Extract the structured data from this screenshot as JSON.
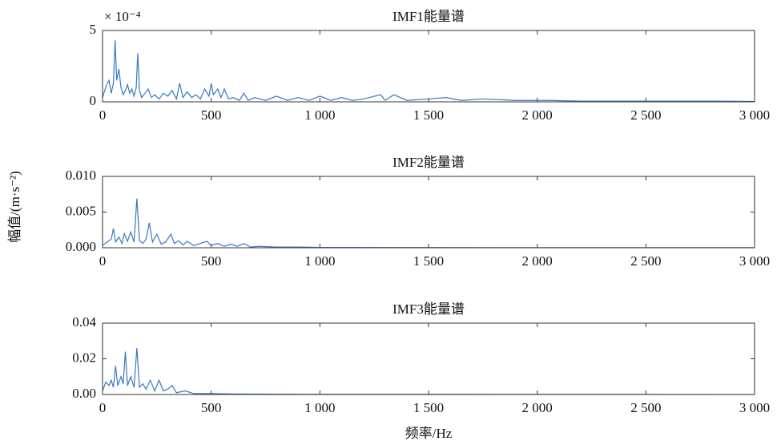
{
  "shared": {
    "y_label": "幅值/(m·s⁻²)",
    "x_label": "频率/Hz"
  },
  "chart_data": [
    {
      "type": "line",
      "title": "IMF1能量谱",
      "y_multiplier": "× 10⁻⁴",
      "color": "#3a78c2",
      "xlim": [
        0,
        3000
      ],
      "xticks": [
        0,
        500,
        {
          "value": 1000,
          "label": "1 000"
        },
        {
          "value": 1500,
          "label": "1 500"
        },
        {
          "value": 2000,
          "label": "2 000"
        },
        {
          "value": 2500,
          "label": "2 500"
        },
        {
          "value": 3000,
          "label": "3 000"
        }
      ],
      "ylim": [
        0,
        5
      ],
      "yticks": [
        0,
        5
      ],
      "x": [
        0,
        10,
        20,
        30,
        40,
        50,
        58,
        65,
        75,
        85,
        95,
        105,
        115,
        125,
        135,
        145,
        155,
        162,
        170,
        180,
        195,
        210,
        225,
        240,
        260,
        280,
        300,
        320,
        340,
        355,
        370,
        390,
        410,
        430,
        450,
        470,
        490,
        500,
        510,
        530,
        545,
        560,
        580,
        600,
        630,
        650,
        670,
        700,
        750,
        800,
        850,
        900,
        950,
        1000,
        1050,
        1100,
        1150,
        1200,
        1280,
        1300,
        1340,
        1400,
        1500,
        1580,
        1650,
        1750,
        1900,
        2050,
        2200,
        2400,
        2600,
        2800,
        3000
      ],
      "values": [
        0.3,
        0.8,
        1.2,
        1.5,
        0.6,
        1.3,
        4.3,
        1.5,
        2.3,
        1.0,
        0.5,
        0.8,
        1.2,
        0.6,
        0.9,
        0.4,
        1.0,
        3.4,
        0.8,
        0.3,
        0.6,
        0.9,
        0.3,
        0.5,
        0.2,
        0.6,
        0.4,
        0.8,
        0.2,
        1.3,
        0.3,
        0.7,
        0.3,
        0.5,
        0.2,
        0.9,
        0.4,
        1.3,
        0.5,
        0.9,
        0.3,
        0.9,
        0.2,
        0.3,
        0.1,
        0.6,
        0.1,
        0.3,
        0.1,
        0.4,
        0.1,
        0.3,
        0.1,
        0.4,
        0.1,
        0.3,
        0.1,
        0.2,
        0.5,
        0.1,
        0.5,
        0.1,
        0.2,
        0.3,
        0.1,
        0.2,
        0.1,
        0.1,
        0.05,
        0.05,
        0.05,
        0.05,
        0.03
      ]
    },
    {
      "type": "line",
      "title": "IMF2能量谱",
      "color": "#3a78c2",
      "xlim": [
        0,
        3000
      ],
      "xticks": [
        0,
        500,
        {
          "value": 1000,
          "label": "1 000"
        },
        {
          "value": 1500,
          "label": "1 500"
        },
        {
          "value": 2000,
          "label": "2 000"
        },
        {
          "value": 2500,
          "label": "2 500"
        },
        {
          "value": 3000,
          "label": "3 000"
        }
      ],
      "ylim": [
        0,
        0.01
      ],
      "yticks": [
        {
          "value": 0,
          "label": "0.000"
        },
        {
          "value": 0.005,
          "label": "0.005"
        },
        {
          "value": 0.01,
          "label": "0.010"
        }
      ],
      "x": [
        0,
        20,
        40,
        50,
        60,
        75,
        90,
        100,
        115,
        130,
        145,
        158,
        170,
        185,
        200,
        215,
        230,
        250,
        270,
        290,
        315,
        330,
        350,
        370,
        390,
        420,
        450,
        480,
        500,
        530,
        560,
        590,
        620,
        650,
        680,
        720,
        800,
        900,
        1000,
        1500,
        2000,
        3000
      ],
      "values": [
        0.0003,
        0.0008,
        0.0012,
        0.0027,
        0.0008,
        0.0015,
        0.0006,
        0.002,
        0.0009,
        0.0022,
        0.0008,
        0.0069,
        0.001,
        0.0006,
        0.0012,
        0.0035,
        0.0008,
        0.0019,
        0.0005,
        0.0008,
        0.0019,
        0.0006,
        0.001,
        0.0004,
        0.0009,
        0.0003,
        0.0006,
        0.0009,
        0.0003,
        0.0006,
        0.0002,
        0.0005,
        0.0002,
        0.0006,
        0.0001,
        0.0002,
        0.0001,
        0.0001,
        5e-05,
        3e-05,
        2e-05,
        1e-05
      ]
    },
    {
      "type": "line",
      "title": "IMF3能量谱",
      "color": "#3a78c2",
      "xlim": [
        0,
        3000
      ],
      "xticks": [
        0,
        500,
        {
          "value": 1000,
          "label": "1 000"
        },
        {
          "value": 1500,
          "label": "1 500"
        },
        {
          "value": 2000,
          "label": "2 000"
        },
        {
          "value": 2500,
          "label": "2 500"
        },
        {
          "value": 3000,
          "label": "3 000"
        }
      ],
      "ylim": [
        0,
        0.04
      ],
      "yticks": [
        {
          "value": 0,
          "label": "0.00"
        },
        {
          "value": 0.02,
          "label": "0.02"
        },
        {
          "value": 0.04,
          "label": "0.04"
        }
      ],
      "x": [
        0,
        15,
        30,
        40,
        50,
        60,
        70,
        85,
        95,
        105,
        115,
        130,
        145,
        158,
        170,
        185,
        200,
        220,
        240,
        260,
        280,
        300,
        320,
        340,
        380,
        420,
        500,
        600,
        800,
        1000,
        1500,
        2000,
        3000
      ],
      "values": [
        0.002,
        0.007,
        0.005,
        0.008,
        0.004,
        0.016,
        0.005,
        0.01,
        0.006,
        0.024,
        0.005,
        0.01,
        0.004,
        0.026,
        0.004,
        0.006,
        0.003,
        0.008,
        0.002,
        0.008,
        0.002,
        0.003,
        0.005,
        0.001,
        0.002,
        0.0005,
        0.0005,
        0.0003,
        0.0002,
        0.0001,
        0.0001,
        5e-05,
        3e-05
      ]
    }
  ]
}
